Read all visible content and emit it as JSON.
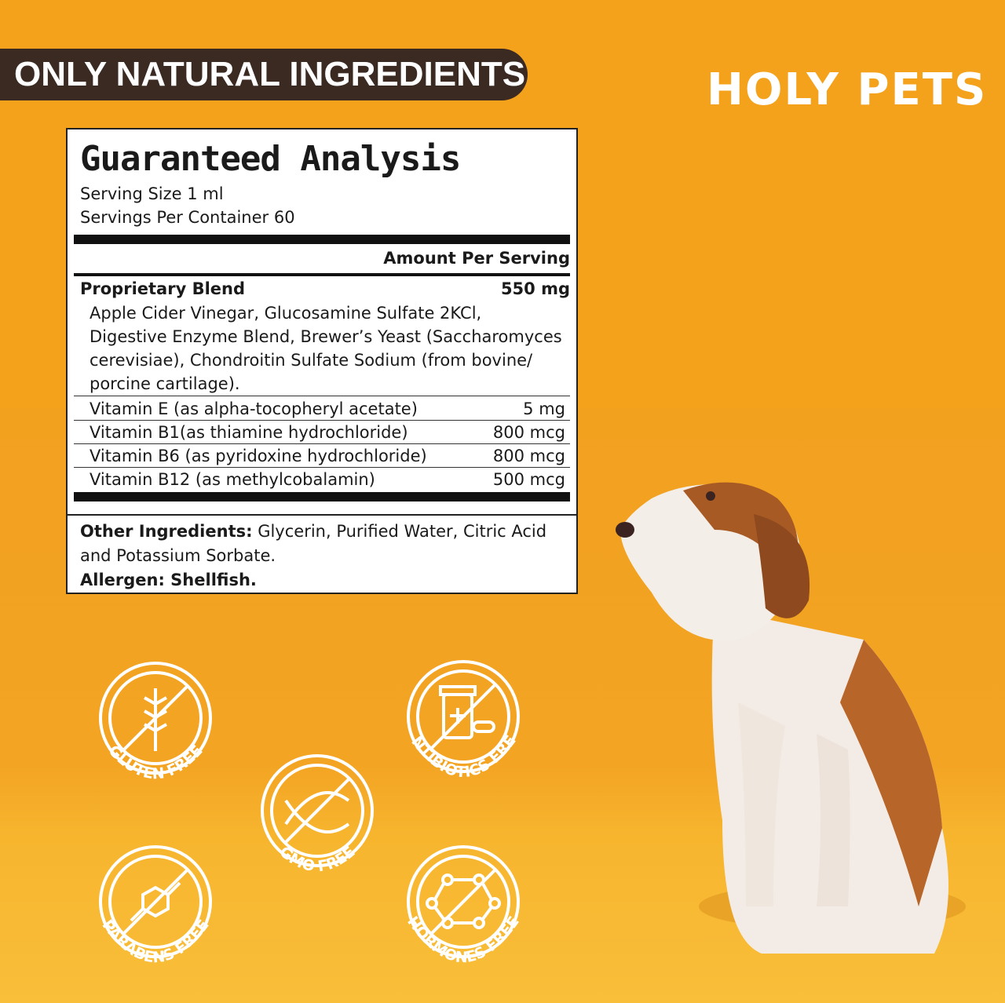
{
  "banner": "ONLY NATURAL INGREDIENTS",
  "logo": "HOLY PETS",
  "label": {
    "title": "Guaranteed Analysis",
    "serving_size": "Serving Size 1 ml",
    "servings_per_container": "Servings Per Container 60",
    "amount_header": "Amount Per Serving",
    "blend_name": "Proprietary Blend",
    "blend_amount": "550 mg",
    "blend_lines": [
      "Apple Cider Vinegar, Glucosamine Sulfate 2KCl,",
      "Digestive Enzyme Blend, Brewer’s Yeast (Saccharomyces",
      "cerevisiae), Chondroitin Sulfate Sodium (from bovine/",
      "porcine cartilage)."
    ],
    "vitamins": [
      {
        "name": "Vitamin E (as alpha-tocopheryl acetate)",
        "amount": "5 mg"
      },
      {
        "name": "Vitamin B1(as thiamine hydrochloride)",
        "amount": "800 mcg"
      },
      {
        "name": "Vitamin B6 (as pyridoxine hydrochloride)",
        "amount": "800 mcg"
      },
      {
        "name": "Vitamin B12 (as methylcobalamin)",
        "amount": "500 mcg"
      }
    ],
    "other_label": "Other Ingredients:",
    "other_text": " Glycerin, Purified Water, Citric Acid",
    "other_text2": "and Potassium Sorbate.",
    "allergen": "Allergen: Shellfish."
  },
  "badges": [
    {
      "label": "GLUTEN FREE",
      "icon": "wheat-icon"
    },
    {
      "label": "GMO FREE",
      "icon": "dna-icon"
    },
    {
      "label": "ANTIBIOTICS FREE",
      "icon": "pill-bottle-icon"
    },
    {
      "label": "PARABENS FREE",
      "icon": "molecule-icon"
    },
    {
      "label": "HORMONES FREE",
      "icon": "hormone-network-icon"
    }
  ],
  "colors": {
    "background": "#F4A11C",
    "banner": "#3B2A22"
  }
}
